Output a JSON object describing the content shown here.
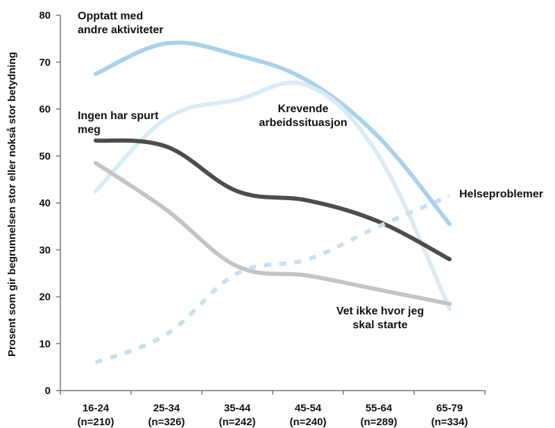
{
  "chart_data": {
    "type": "line",
    "title": "",
    "xlabel": "",
    "ylabel": "Prosent som gir begrunnelsen stor eller nokså stor betydning",
    "ylim": [
      0,
      80
    ],
    "yticks": [
      "0",
      "10",
      "20",
      "30",
      "40",
      "50",
      "60",
      "70",
      "80"
    ],
    "categories": [
      [
        "16-24",
        "(n=210)"
      ],
      [
        "25-34",
        "(n=326)"
      ],
      [
        "35-44",
        "(n=242)"
      ],
      [
        "45-54",
        "(n=240)"
      ],
      [
        "55-64",
        "(n=289)"
      ],
      [
        "65-79",
        "(n=334)"
      ]
    ],
    "grid": false,
    "legend": "none",
    "series": [
      {
        "name": "Opptatt med andre aktiviteter",
        "label_lines": [
          "Opptatt med",
          "andre aktiviteter"
        ],
        "color": "#a9d2ea",
        "dash": false,
        "values": [
          67.5,
          74,
          71.5,
          66,
          54,
          35.5
        ]
      },
      {
        "name": "Krevende arbeidssituasjon",
        "label_lines": [
          "Krevende",
          "arbeidssituasjon"
        ],
        "color": "#d9ebf6",
        "dash": false,
        "values": [
          42.5,
          58,
          62,
          65,
          50,
          17.5
        ]
      },
      {
        "name": "Ingen har spurt meg",
        "label_lines": [
          "Ingen har spurt",
          "meg"
        ],
        "color": "#4d4d4d",
        "dash": false,
        "values": [
          53.3,
          52,
          42.5,
          40.5,
          36,
          28
        ]
      },
      {
        "name": "Vet ikke hvor jeg skal starte",
        "label_lines": [
          "Vet ikke hvor jeg",
          "skal starte"
        ],
        "color": "#c4c4c4",
        "dash": false,
        "values": [
          48.5,
          38.5,
          26.5,
          24.5,
          21.5,
          18.5
        ]
      },
      {
        "name": "Helseproblemer",
        "label_lines": [
          "Helseproblemer"
        ],
        "color": "#c6e0f1",
        "dash": true,
        "values": [
          6,
          12,
          25,
          28,
          35,
          41.5
        ]
      }
    ]
  }
}
